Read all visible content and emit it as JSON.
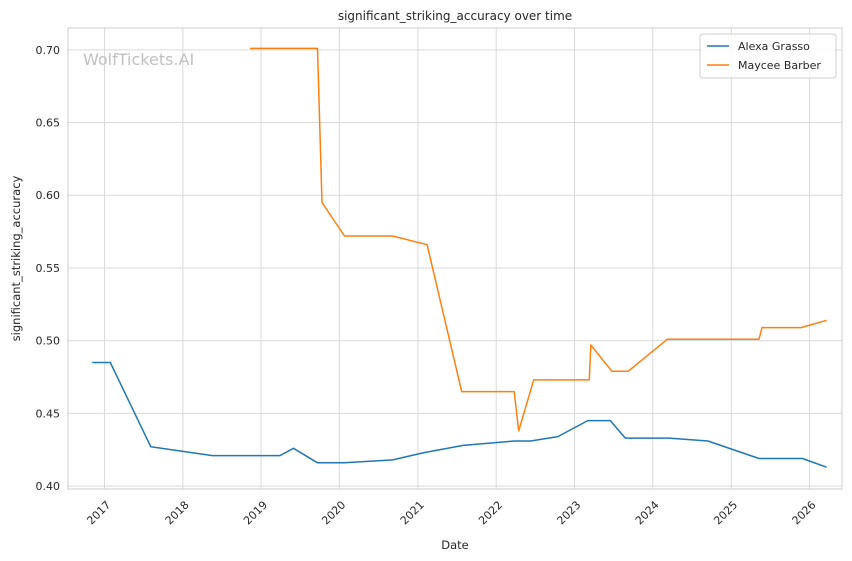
{
  "chart_data": {
    "type": "line",
    "title": "significant_striking_accuracy over time",
    "xlabel": "Date",
    "ylabel": "significant_striking_accuracy",
    "watermark": "WolfTickets.AI",
    "xlim": [
      "2016-07-15",
      "2026-06-01"
    ],
    "ylim": [
      0.398,
      0.715
    ],
    "x_ticks": [
      "2017",
      "2018",
      "2019",
      "2020",
      "2021",
      "2022",
      "2023",
      "2024",
      "2025",
      "2026"
    ],
    "y_ticks": [
      "0.40",
      "0.45",
      "0.50",
      "0.55",
      "0.60",
      "0.65",
      "0.70"
    ],
    "grid": true,
    "legend_position": "top-right",
    "series": [
      {
        "name": "Alexa Grasso",
        "color": "#1f77b4",
        "x": [
          "2016-11-05",
          "2017-01-28",
          "2017-08-05",
          "2018-05-19",
          "2019-03-30",
          "2019-06-01",
          "2019-09-21",
          "2020-01-25",
          "2020-09-05",
          "2021-01-30",
          "2021-07-31",
          "2022-03-26",
          "2022-06-11",
          "2022-10-15",
          "2023-03-04",
          "2023-06-17",
          "2023-08-26",
          "2024-03-16",
          "2024-09-14",
          "2025-05-10",
          "2025-11-29",
          "2026-03-21"
        ],
        "y": [
          0.485,
          0.485,
          0.427,
          0.421,
          0.421,
          0.426,
          0.416,
          0.416,
          0.418,
          0.423,
          0.428,
          0.431,
          0.431,
          0.434,
          0.445,
          0.445,
          0.433,
          0.433,
          0.431,
          0.419,
          0.419,
          0.413
        ]
      },
      {
        "name": "Maycee Barber",
        "color": "#ff7f0e",
        "x": [
          "2018-11-10",
          "2019-01-26",
          "2019-09-21",
          "2019-10-12",
          "2020-01-25",
          "2020-09-05",
          "2021-02-13",
          "2021-07-24",
          "2022-03-26",
          "2022-04-16",
          "2022-06-25",
          "2022-11-05",
          "2023-03-11",
          "2023-03-18",
          "2023-06-24",
          "2023-09-09",
          "2024-03-09",
          "2024-08-10",
          "2025-05-10",
          "2025-05-24",
          "2025-11-22",
          "2026-03-21"
        ],
        "y": [
          0.701,
          0.701,
          0.701,
          0.595,
          0.572,
          0.572,
          0.566,
          0.465,
          0.465,
          0.438,
          0.473,
          0.473,
          0.473,
          0.497,
          0.479,
          0.479,
          0.501,
          0.501,
          0.501,
          0.509,
          0.509,
          0.514
        ]
      }
    ]
  }
}
